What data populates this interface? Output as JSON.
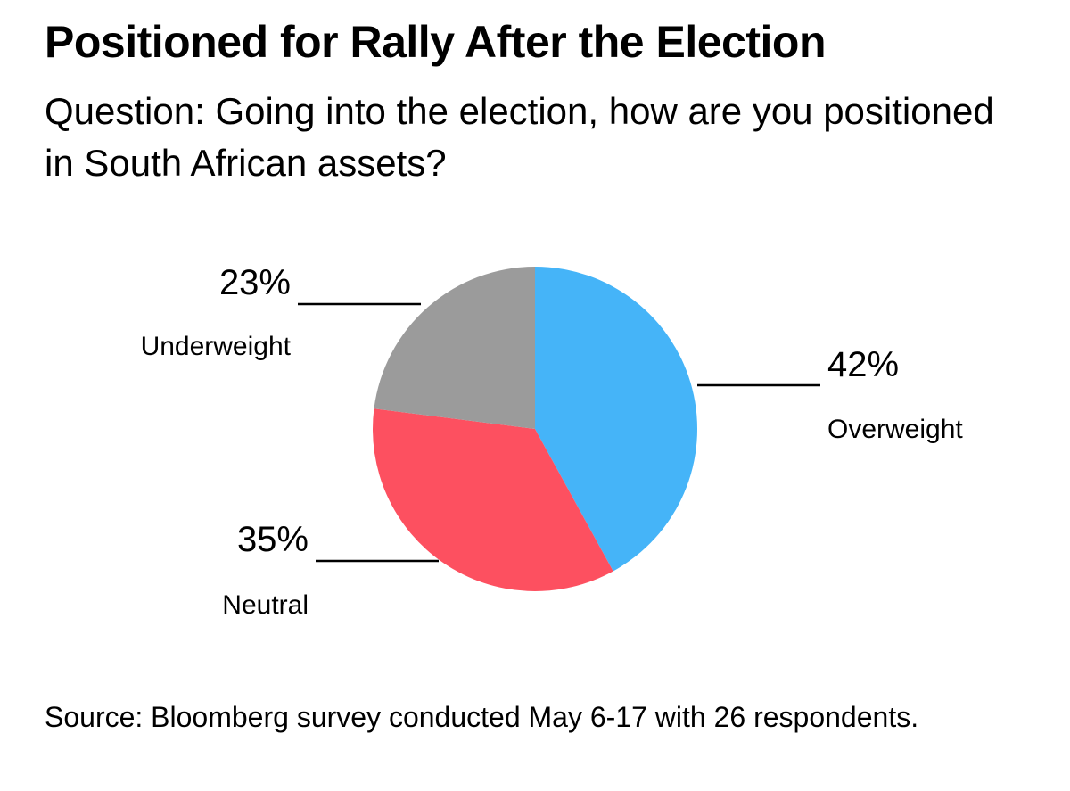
{
  "chart_data": {
    "type": "pie",
    "title": "Positioned for Rally After the Election",
    "subtitle": "Question: Going into the election, how are you positioned in South African assets?",
    "slices": [
      {
        "label": "Overweight",
        "value": 42,
        "value_label": "42%",
        "color": "#45b4f8"
      },
      {
        "label": "Neutral",
        "value": 35,
        "value_label": "35%",
        "color": "#fd5060"
      },
      {
        "label": "Underweight",
        "value": 23,
        "value_label": "23%",
        "color": "#9b9b9b"
      }
    ],
    "start": "12 o'clock",
    "direction": "clockwise",
    "source": "Source: Bloomberg survey conducted May 6-17 with 26 respondents."
  }
}
